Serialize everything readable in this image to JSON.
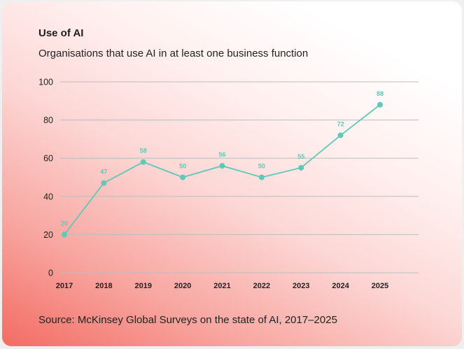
{
  "chart_data": {
    "type": "line",
    "title": "Use of AI",
    "subtitle": "Organisations that use AI in at least one business function",
    "source": "Source: McKinsey Global Surveys on the state of AI, 2017–2025",
    "categories": [
      "2017",
      "2018",
      "2019",
      "2020",
      "2021",
      "2022",
      "2023",
      "2024",
      "2025"
    ],
    "values": [
      20,
      47,
      58,
      50,
      56,
      50,
      55,
      72,
      88
    ],
    "ylim": [
      0,
      100
    ],
    "yticks": [
      0,
      20,
      40,
      60,
      80,
      100
    ],
    "grid": true,
    "data_labels": true,
    "colors": {
      "line": "#5ec9b6",
      "grid": "#bdbdbd",
      "background_gradient": [
        "#f26c63",
        "#ffffff"
      ]
    }
  }
}
